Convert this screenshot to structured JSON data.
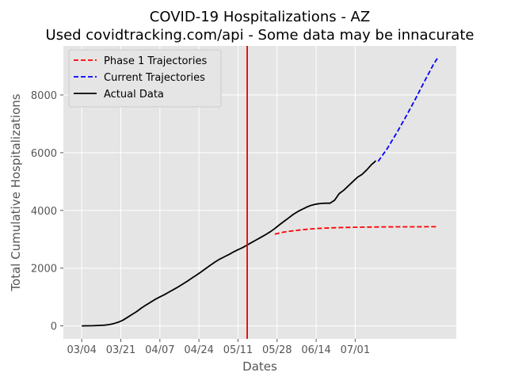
{
  "chart_data": {
    "type": "line",
    "title": "COVID-19 Hospitalizations - AZ",
    "subtitle": "Used covidtracking.com/api - Some data may be innacurate",
    "xlabel": "Dates",
    "ylabel": "Total Cumulative Hospitalizations",
    "x_tick_labels": [
      "03/04",
      "03/21",
      "04/07",
      "04/24",
      "05/11",
      "05/28",
      "06/14",
      "07/01"
    ],
    "x_tick_days": [
      0,
      17,
      34,
      51,
      68,
      85,
      102,
      119
    ],
    "y_ticks": [
      0,
      2000,
      4000,
      6000,
      8000
    ],
    "xlim": [
      -8,
      163
    ],
    "ylim": [
      -450,
      9700
    ],
    "vertical_line_day": 72,
    "grid": true,
    "legend_position": "top-left",
    "colors": {
      "phase1": "#ff0000",
      "current": "#0000ff",
      "actual": "#000000",
      "vline": "#e00000",
      "background": "#e5e5e5",
      "grid": "#ffffff"
    },
    "series": [
      {
        "name": "Phase 1 Trajectories",
        "style": "dashed",
        "color": "#ff0000",
        "x": [
          84,
          88,
          92,
          96,
          100,
          105,
          110,
          115,
          120,
          126,
          132,
          138,
          144,
          150,
          155
        ],
        "y": [
          3180,
          3250,
          3295,
          3330,
          3360,
          3385,
          3400,
          3410,
          3418,
          3424,
          3428,
          3431,
          3433,
          3434,
          3434
        ]
      },
      {
        "name": "Current Trajectories",
        "style": "dashed",
        "color": "#0000ff",
        "x": [
          129,
          133,
          137,
          141,
          145,
          149,
          153,
          155
        ],
        "y": [
          5700,
          6150,
          6680,
          7240,
          7830,
          8450,
          9050,
          9300
        ]
      },
      {
        "name": "Actual Data",
        "style": "solid",
        "color": "#000000",
        "x": [
          0,
          5,
          8,
          10,
          12,
          14,
          16,
          18,
          20,
          22,
          24,
          26,
          28,
          30,
          32,
          34,
          36,
          38,
          40,
          42,
          44,
          46,
          48,
          50,
          52,
          54,
          56,
          58,
          60,
          62,
          64,
          66,
          68,
          70,
          72,
          74,
          76,
          78,
          80,
          82,
          84,
          86,
          88,
          90,
          92,
          94,
          96,
          98,
          100,
          102,
          104,
          106,
          108,
          110,
          112,
          114,
          116,
          118,
          120,
          122,
          124,
          126,
          128
        ],
        "y": [
          0,
          5,
          15,
          25,
          45,
          80,
          130,
          200,
          300,
          400,
          500,
          620,
          720,
          820,
          920,
          1000,
          1080,
          1170,
          1260,
          1350,
          1450,
          1550,
          1660,
          1760,
          1870,
          1990,
          2100,
          2210,
          2310,
          2390,
          2470,
          2560,
          2640,
          2710,
          2800,
          2890,
          2980,
          3070,
          3160,
          3260,
          3370,
          3500,
          3620,
          3740,
          3860,
          3960,
          4040,
          4120,
          4180,
          4220,
          4240,
          4250,
          4250,
          4350,
          4580,
          4700,
          4850,
          5000,
          5150,
          5250,
          5400,
          5580,
          5720
        ]
      }
    ]
  }
}
